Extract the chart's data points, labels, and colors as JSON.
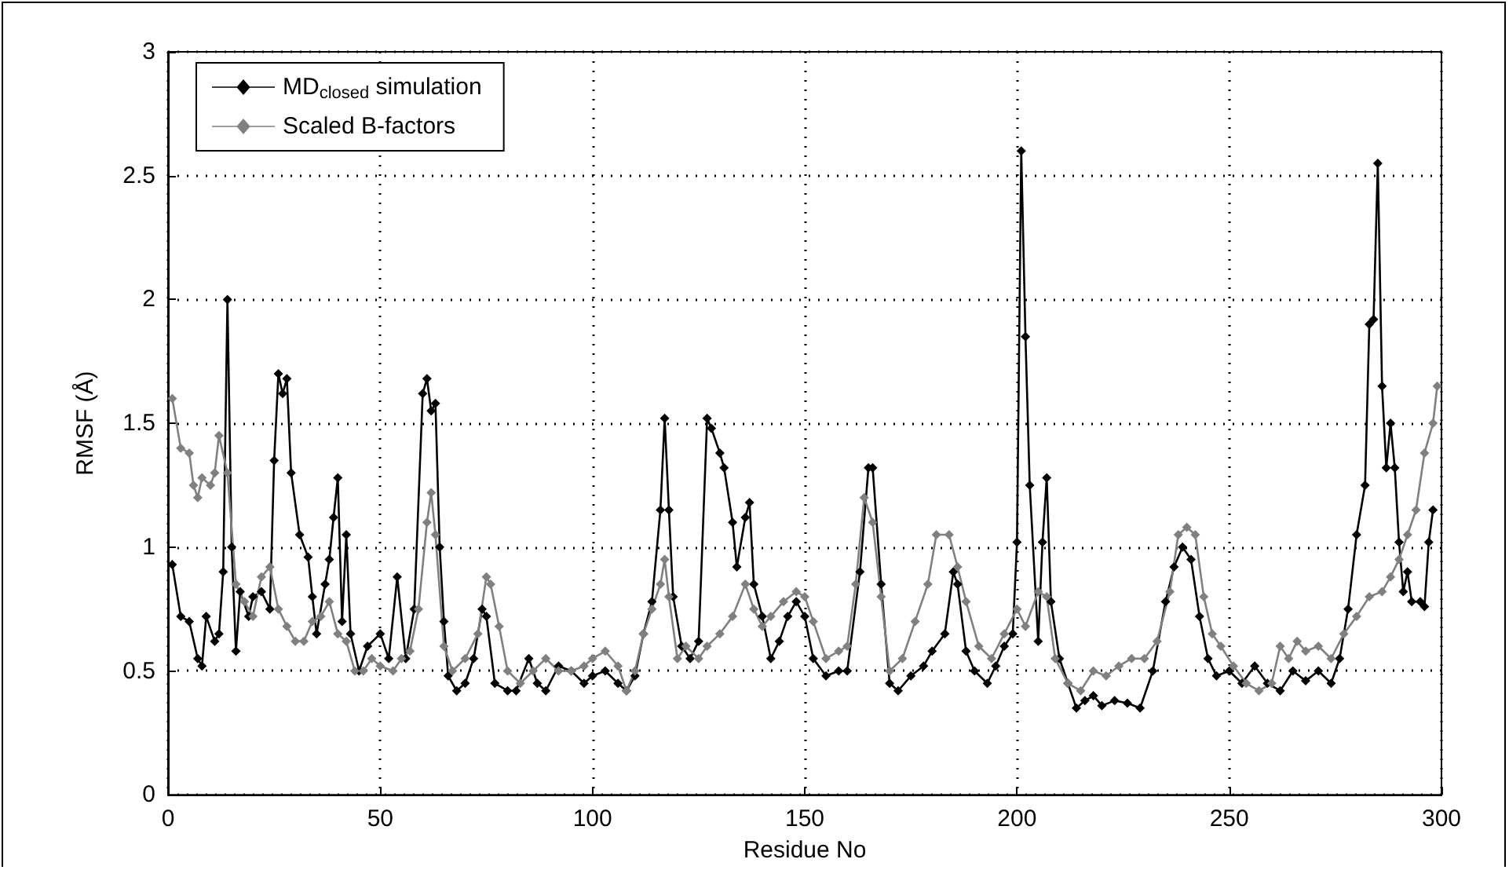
{
  "chart_data": {
    "type": "line",
    "xlabel": "Residue No",
    "ylabel": "RMSF (Å)",
    "xlim": [
      0,
      300
    ],
    "xticks": [
      0,
      50,
      100,
      150,
      200,
      250,
      300
    ],
    "ylim": [
      0,
      3
    ],
    "yticks": [
      0,
      0.5,
      1,
      1.5,
      2,
      2.5,
      3
    ],
    "grid": true,
    "legend": "top left",
    "marker": "diamond",
    "line_style": "solid",
    "series": [
      {
        "name": "MD$_{closed}$ simulation",
        "color": "#000000",
        "x": [
          1,
          3,
          5,
          7,
          8,
          9,
          11,
          12,
          13,
          14,
          15,
          16,
          17,
          19,
          20,
          22,
          24,
          25,
          26,
          27,
          28,
          29,
          31,
          33,
          34,
          35,
          37,
          38,
          39,
          40,
          41,
          42,
          43,
          45,
          47,
          50,
          52,
          54,
          56,
          58,
          60,
          61,
          62,
          63,
          64,
          65,
          66,
          68,
          70,
          72,
          74,
          75,
          77,
          80,
          82,
          85,
          87,
          89,
          92,
          95,
          98,
          100,
          103,
          106,
          108,
          110,
          112,
          114,
          116,
          117,
          118,
          119,
          121,
          123,
          125,
          127,
          128,
          130,
          131,
          133,
          134,
          136,
          137,
          138,
          140,
          142,
          144,
          146,
          148,
          150,
          152,
          155,
          158,
          160,
          163,
          165,
          166,
          168,
          170,
          172,
          175,
          178,
          180,
          183,
          185,
          186,
          188,
          190,
          193,
          195,
          197,
          199,
          200,
          201,
          202,
          203,
          205,
          206,
          207,
          208,
          210,
          212,
          214,
          216,
          218,
          220,
          223,
          226,
          229,
          232,
          235,
          237,
          239,
          241,
          243,
          245,
          247,
          250,
          253,
          256,
          259,
          262,
          265,
          268,
          271,
          274,
          276,
          278,
          280,
          282,
          283,
          284,
          285,
          286,
          287,
          288,
          289,
          290,
          291,
          292,
          293,
          295,
          296,
          297,
          298
        ],
        "values": [
          0.93,
          0.72,
          0.7,
          0.55,
          0.52,
          0.72,
          0.62,
          0.65,
          0.9,
          2.0,
          1.0,
          0.58,
          0.82,
          0.72,
          0.8,
          0.82,
          0.75,
          1.35,
          1.7,
          1.62,
          1.68,
          1.3,
          1.05,
          0.96,
          0.8,
          0.65,
          0.85,
          0.95,
          1.12,
          1.28,
          0.7,
          1.05,
          0.65,
          0.5,
          0.6,
          0.65,
          0.55,
          0.88,
          0.55,
          0.75,
          1.62,
          1.68,
          1.55,
          1.58,
          1.0,
          0.7,
          0.48,
          0.42,
          0.45,
          0.55,
          0.75,
          0.72,
          0.45,
          0.42,
          0.42,
          0.55,
          0.45,
          0.42,
          0.52,
          0.5,
          0.45,
          0.48,
          0.5,
          0.45,
          0.42,
          0.48,
          0.65,
          0.78,
          1.15,
          1.52,
          1.15,
          0.8,
          0.6,
          0.55,
          0.62,
          1.52,
          1.48,
          1.38,
          1.32,
          1.1,
          0.92,
          1.12,
          1.18,
          0.85,
          0.72,
          0.55,
          0.62,
          0.72,
          0.78,
          0.72,
          0.55,
          0.48,
          0.5,
          0.5,
          0.9,
          1.32,
          1.32,
          0.85,
          0.45,
          0.42,
          0.48,
          0.52,
          0.58,
          0.65,
          0.9,
          0.85,
          0.58,
          0.5,
          0.45,
          0.52,
          0.6,
          0.65,
          1.02,
          2.6,
          1.85,
          1.25,
          0.62,
          1.02,
          1.28,
          0.78,
          0.55,
          0.45,
          0.35,
          0.38,
          0.4,
          0.36,
          0.38,
          0.37,
          0.35,
          0.5,
          0.78,
          0.92,
          1.0,
          0.95,
          0.72,
          0.55,
          0.48,
          0.5,
          0.45,
          0.52,
          0.45,
          0.42,
          0.5,
          0.46,
          0.5,
          0.45,
          0.55,
          0.75,
          1.05,
          1.25,
          1.9,
          1.92,
          2.55,
          1.65,
          1.32,
          1.5,
          1.32,
          1.02,
          0.82,
          0.9,
          0.78,
          0.78,
          0.76,
          1.02,
          1.15
        ]
      },
      {
        "name": "Scaled B-factors",
        "color": "#808080",
        "x": [
          1,
          3,
          5,
          6,
          7,
          8,
          10,
          11,
          12,
          14,
          16,
          18,
          20,
          22,
          24,
          26,
          28,
          30,
          32,
          34,
          36,
          38,
          40,
          42,
          44,
          46,
          48,
          50,
          53,
          55,
          57,
          59,
          61,
          62,
          63,
          65,
          67,
          70,
          73,
          75,
          76,
          78,
          80,
          83,
          86,
          89,
          92,
          95,
          98,
          100,
          103,
          106,
          108,
          110,
          112,
          114,
          116,
          117,
          118,
          120,
          122,
          125,
          127,
          130,
          133,
          136,
          138,
          140,
          142,
          145,
          148,
          150,
          152,
          155,
          158,
          160,
          162,
          164,
          166,
          168,
          170,
          173,
          176,
          179,
          181,
          184,
          186,
          188,
          191,
          194,
          197,
          200,
          202,
          205,
          207,
          209,
          212,
          215,
          218,
          221,
          224,
          227,
          230,
          233,
          236,
          238,
          240,
          242,
          244,
          246,
          248,
          251,
          254,
          257,
          260,
          262,
          264,
          266,
          268,
          271,
          274,
          277,
          280,
          283,
          286,
          288,
          290,
          292,
          294,
          296,
          298,
          299
        ],
        "values": [
          1.6,
          1.4,
          1.38,
          1.25,
          1.2,
          1.28,
          1.25,
          1.3,
          1.45,
          1.3,
          0.85,
          0.78,
          0.72,
          0.88,
          0.92,
          0.75,
          0.68,
          0.62,
          0.62,
          0.7,
          0.72,
          0.78,
          0.65,
          0.62,
          0.5,
          0.5,
          0.55,
          0.52,
          0.5,
          0.55,
          0.58,
          0.75,
          1.1,
          1.22,
          1.05,
          0.6,
          0.5,
          0.55,
          0.65,
          0.88,
          0.85,
          0.68,
          0.5,
          0.45,
          0.5,
          0.55,
          0.5,
          0.5,
          0.52,
          0.55,
          0.58,
          0.52,
          0.42,
          0.5,
          0.65,
          0.75,
          0.85,
          0.95,
          0.8,
          0.55,
          0.6,
          0.55,
          0.6,
          0.65,
          0.72,
          0.85,
          0.75,
          0.68,
          0.72,
          0.78,
          0.82,
          0.8,
          0.7,
          0.55,
          0.58,
          0.6,
          0.85,
          1.2,
          1.1,
          0.8,
          0.5,
          0.55,
          0.7,
          0.85,
          1.05,
          1.05,
          0.92,
          0.78,
          0.6,
          0.55,
          0.65,
          0.75,
          0.68,
          0.82,
          0.8,
          0.55,
          0.45,
          0.42,
          0.5,
          0.48,
          0.52,
          0.55,
          0.55,
          0.62,
          0.82,
          1.05,
          1.08,
          1.05,
          0.8,
          0.65,
          0.6,
          0.52,
          0.45,
          0.42,
          0.45,
          0.6,
          0.55,
          0.62,
          0.58,
          0.6,
          0.55,
          0.65,
          0.72,
          0.8,
          0.82,
          0.88,
          0.95,
          1.05,
          1.15,
          1.38,
          1.5,
          1.65
        ]
      }
    ]
  }
}
